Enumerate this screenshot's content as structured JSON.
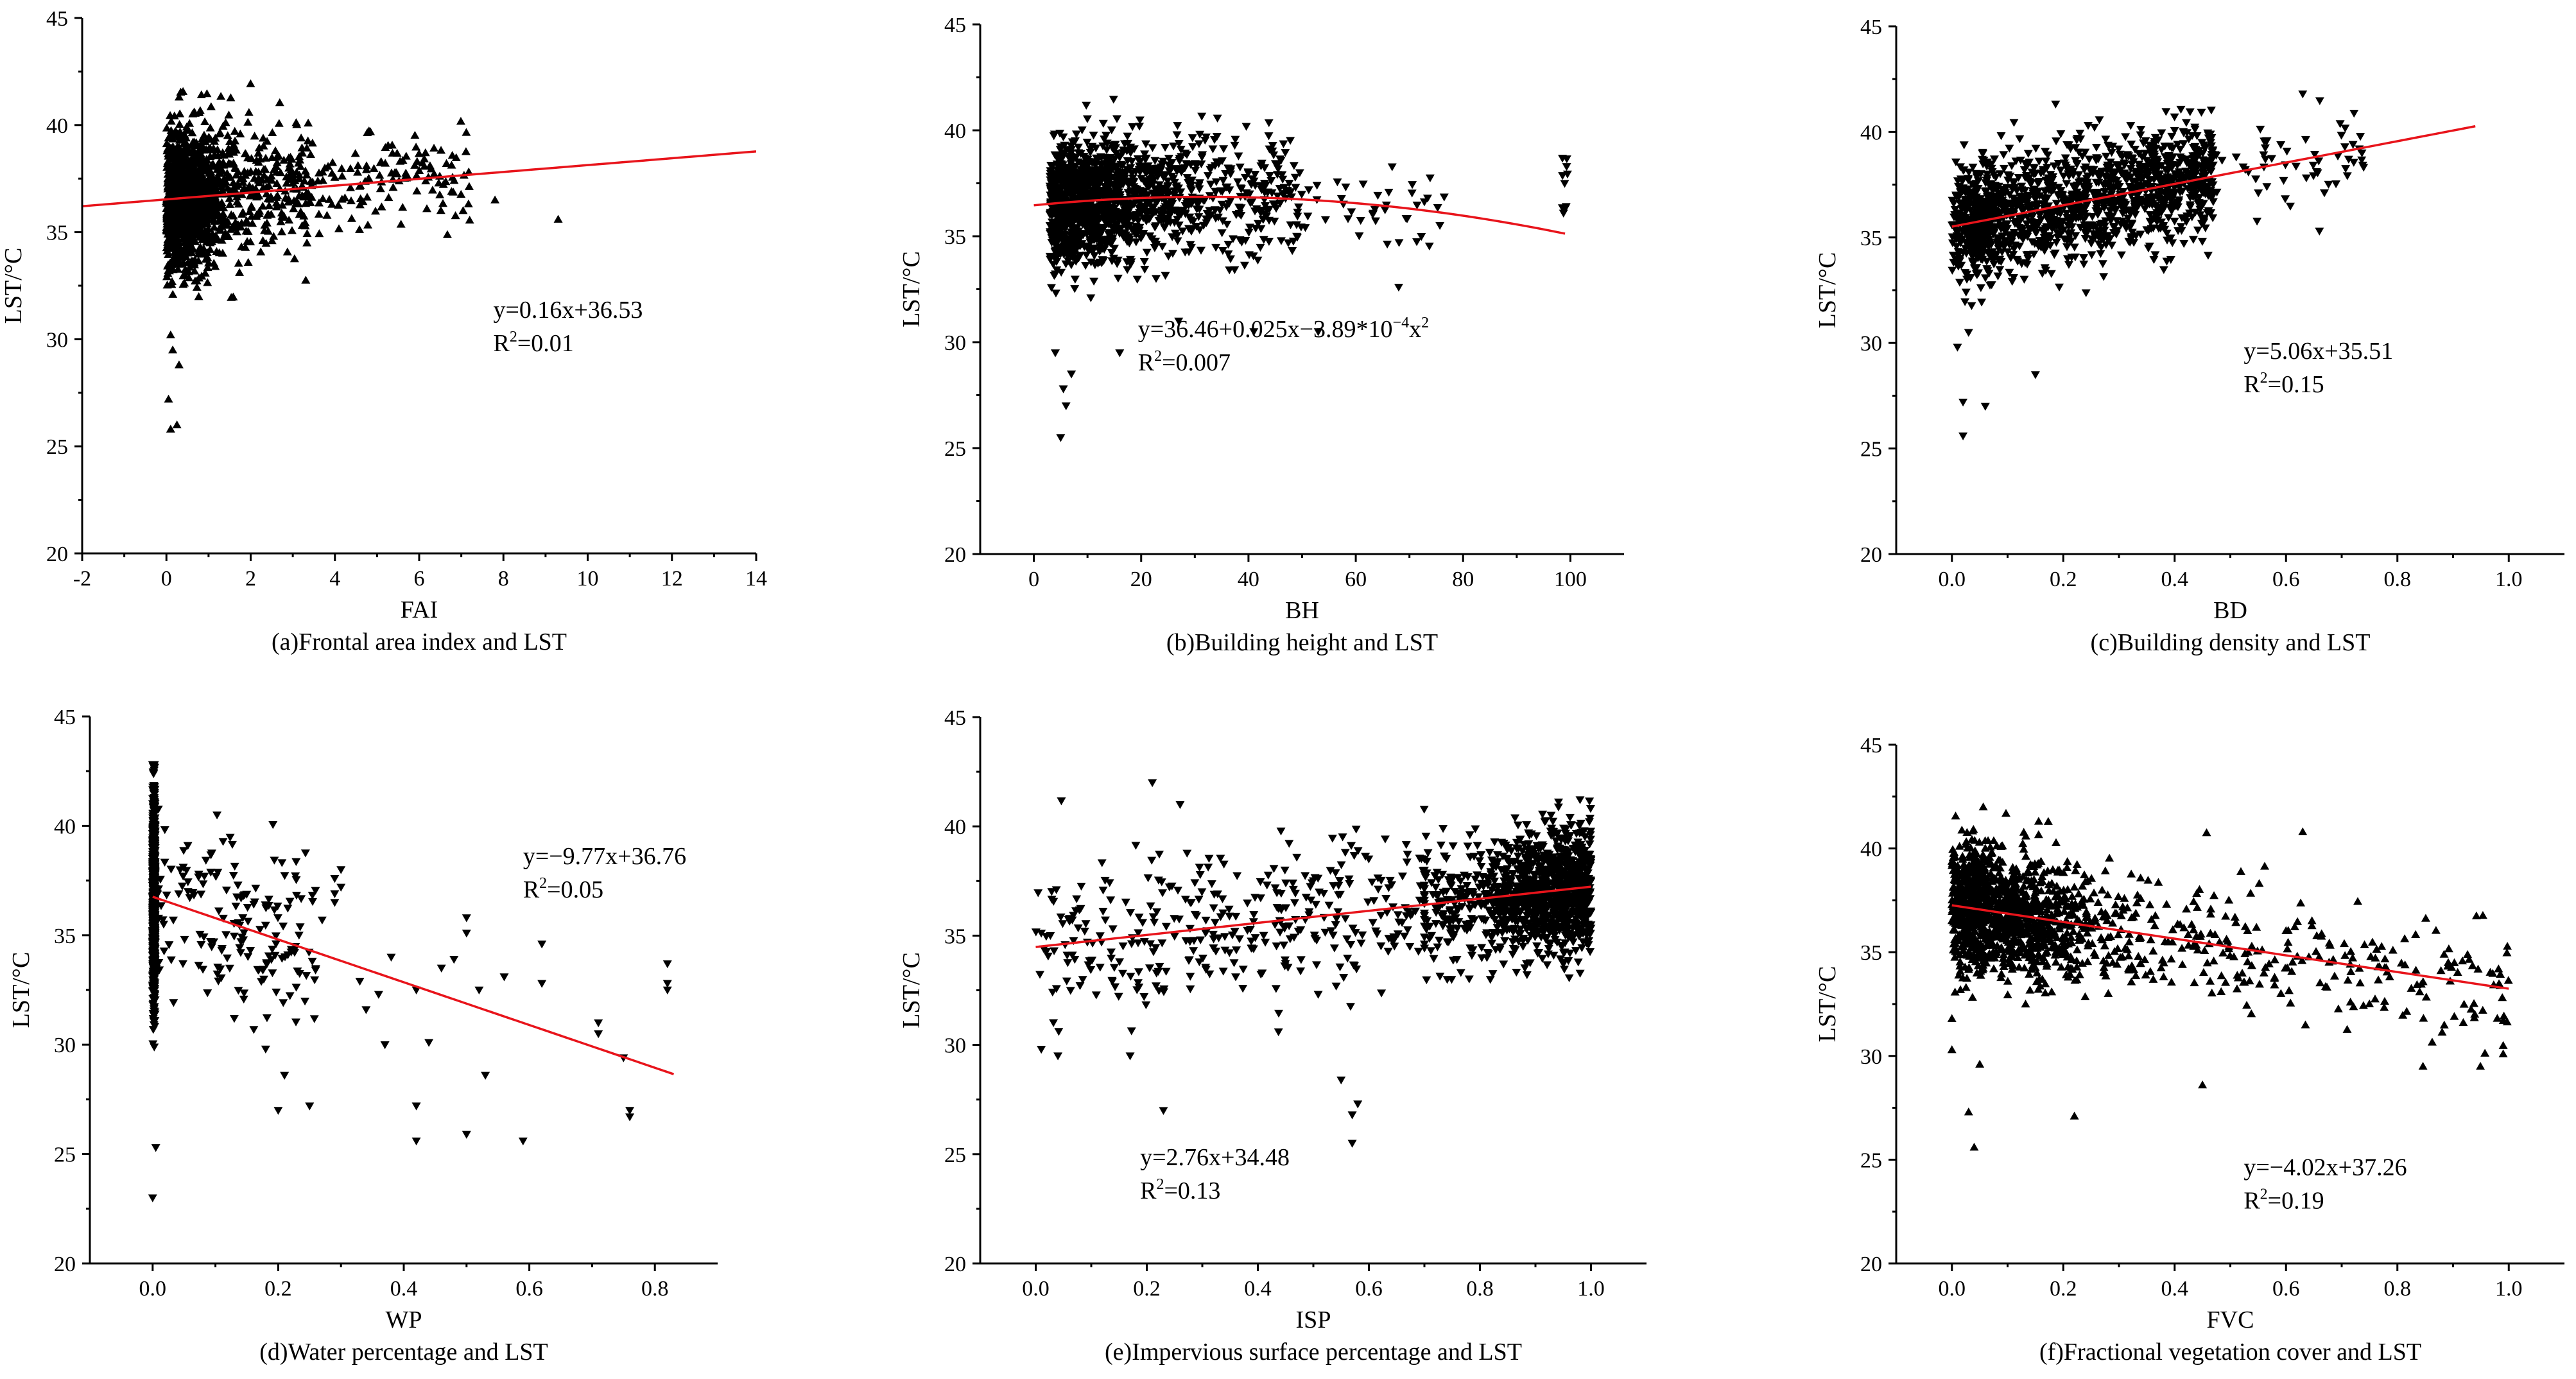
{
  "chart_data": [
    {
      "type": "scatter",
      "panel": "a",
      "caption": "(a)Frontal area index and LST",
      "xlabel": "FAI",
      "ylabel": "LST/°C",
      "xlim": [
        -2,
        14
      ],
      "ylim": [
        20,
        45
      ],
      "xticks": [
        -2,
        0,
        2,
        4,
        6,
        8,
        10,
        12,
        14
      ],
      "xtick_labels": [
        "-2",
        "0",
        "2",
        "4",
        "6",
        "8",
        "10",
        "12",
        "14"
      ],
      "yticks": [
        20,
        25,
        30,
        35,
        40,
        45
      ],
      "marker": "triangle-up",
      "fit_line_color": "#e8141b",
      "equation": "y=0.16x+36.53",
      "r2_label": "R",
      "r2_value": "=0.01",
      "fit": {
        "kind": "linear",
        "coef": [
          36.53,
          0.16
        ],
        "x_range": [
          -2,
          14
        ]
      },
      "points_summary": {
        "x_dense_range": [
          0,
          2.5
        ],
        "y_range_at_dense": [
          31,
          41
        ],
        "x_max": 9.3,
        "y_min": 25.5,
        "y_max": 42
      }
    },
    {
      "type": "scatter",
      "panel": "b",
      "caption": "(b)Building height and LST",
      "xlabel": "BH",
      "ylabel": "LST/°C",
      "xlim": [
        -10,
        110
      ],
      "ylim": [
        20,
        45
      ],
      "xticks": [
        0,
        20,
        40,
        60,
        80,
        100
      ],
      "xtick_labels": [
        "0",
        "20",
        "40",
        "60",
        "80",
        "100"
      ],
      "yticks": [
        20,
        25,
        30,
        35,
        40,
        45
      ],
      "marker": "triangle-down",
      "fit_line_color": "#e8141b",
      "equation_main": "y=36.46+0.025x−3.89*10",
      "equation_exp": "−4",
      "equation_tail": "x",
      "equation_tail_exp": "2",
      "r2_label": "R",
      "r2_value": "=0.007",
      "fit": {
        "kind": "quadratic",
        "coef": [
          36.46,
          0.025,
          -0.000389
        ],
        "x_range": [
          0,
          99
        ]
      },
      "points_summary": {
        "x_dense_range": [
          2,
          50
        ],
        "y_range_at_dense": [
          31,
          41
        ],
        "x_max": 99,
        "y_min": 25.5,
        "y_max": 42
      }
    },
    {
      "type": "scatter",
      "panel": "c",
      "caption": "(c)Building density and LST",
      "xlabel": "BD",
      "ylabel": "LST/°C",
      "xlim": [
        -0.1,
        1.1
      ],
      "ylim": [
        20,
        45
      ],
      "xticks": [
        0.0,
        0.2,
        0.4,
        0.6,
        0.8,
        1.0
      ],
      "xtick_labels": [
        "0.0",
        "0.2",
        "0.4",
        "0.6",
        "0.8",
        "1.0"
      ],
      "yticks": [
        20,
        25,
        30,
        35,
        40,
        45
      ],
      "marker": "triangle-down",
      "fit_line_color": "#e8141b",
      "equation": "y=5.06x+35.51",
      "r2_label": "R",
      "r2_value": "=0.15",
      "fit": {
        "kind": "linear",
        "coef": [
          35.51,
          5.06
        ],
        "x_range": [
          0,
          0.94
        ]
      },
      "points_summary": {
        "x_dense_range": [
          0,
          0.5
        ],
        "y_range_at_dense": [
          31,
          41
        ],
        "x_max": 0.74,
        "y_min": 25.5,
        "y_max": 42
      }
    },
    {
      "type": "scatter",
      "panel": "d",
      "caption": "(d)Water percentage and LST",
      "xlabel": "WP",
      "ylabel": "LST/°C",
      "xlim": [
        -0.1,
        0.9
      ],
      "ylim": [
        20,
        45
      ],
      "xticks": [
        0.0,
        0.2,
        0.4,
        0.6,
        0.8
      ],
      "xtick_labels": [
        "0.0",
        "0.2",
        "0.4",
        "0.6",
        "0.8"
      ],
      "yticks": [
        20,
        25,
        30,
        35,
        40,
        45
      ],
      "marker": "triangle-down",
      "fit_line_color": "#e8141b",
      "equation": "y=−9.77x+36.76",
      "r2_label": "R",
      "r2_value": "=0.05",
      "fit": {
        "kind": "linear",
        "coef": [
          36.76,
          -9.77
        ],
        "x_range": [
          0,
          0.83
        ]
      },
      "points_summary": {
        "x_dense_range": [
          0,
          0.005
        ],
        "y_range_at_dense": [
          23,
          42.8
        ],
        "x_max": 0.82,
        "y_min": 23,
        "y_max": 42.8
      }
    },
    {
      "type": "scatter",
      "panel": "e",
      "caption": "(e)Impervious surface percentage and LST",
      "xlabel": "ISP",
      "ylabel": "LST/°C",
      "xlim": [
        -0.1,
        1.1
      ],
      "ylim": [
        20,
        45
      ],
      "xticks": [
        0.0,
        0.2,
        0.4,
        0.6,
        0.8,
        1.0
      ],
      "xtick_labels": [
        "0.0",
        "0.2",
        "0.4",
        "0.6",
        "0.8",
        "1.0"
      ],
      "yticks": [
        20,
        25,
        30,
        35,
        40,
        45
      ],
      "marker": "triangle-down",
      "fit_line_color": "#e8141b",
      "equation": "y=2.76x+34.48",
      "r2_label": "R",
      "r2_value": "=0.13",
      "fit": {
        "kind": "linear",
        "coef": [
          34.48,
          2.76
        ],
        "x_range": [
          0,
          1.0
        ]
      },
      "points_summary": {
        "x_dense_range": [
          0.75,
          1.0
        ],
        "y_range_at_dense": [
          33,
          42
        ],
        "x_min": 0,
        "y_min": 25.5,
        "y_max": 42
      }
    },
    {
      "type": "scatter",
      "panel": "f",
      "caption": "(f)Fractional vegetation cover and LST",
      "xlabel": "FVC",
      "ylabel": "LST/°C",
      "xlim": [
        -0.1,
        1.1
      ],
      "ylim": [
        20,
        45
      ],
      "xticks": [
        0.0,
        0.2,
        0.4,
        0.6,
        0.8,
        1.0
      ],
      "xtick_labels": [
        "0.0",
        "0.2",
        "0.4",
        "0.6",
        "0.8",
        "1.0"
      ],
      "yticks": [
        20,
        25,
        30,
        35,
        40,
        45
      ],
      "marker": "triangle-up",
      "fit_line_color": "#e8141b",
      "equation": "y=−4.02x+37.26",
      "r2_label": "R",
      "r2_value": "=0.19",
      "fit": {
        "kind": "linear",
        "coef": [
          37.26,
          -4.02
        ],
        "x_range": [
          0,
          1.0
        ]
      },
      "points_summary": {
        "x_dense_range": [
          0,
          0.25
        ],
        "y_range_at_dense": [
          33,
          42
        ],
        "x_max": 1.0,
        "y_min": 25.5,
        "y_max": 42
      }
    }
  ]
}
